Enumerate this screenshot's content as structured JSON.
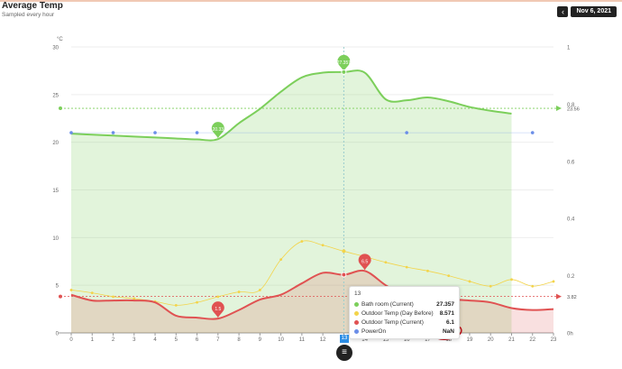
{
  "header": {
    "title": "Average Temp",
    "subtitle": "Sampled every hour"
  },
  "datebar": {
    "prev": "‹",
    "date": "Nov 6, 2021",
    "next": "›"
  },
  "menu_icon": "≡",
  "tooltip": {
    "header": "13",
    "rows": [
      {
        "name": "Bath room (Current)",
        "value": "27.357",
        "color": "#7ccf5b"
      },
      {
        "name": "Outdoor Temp (Day Before)",
        "value": "8.571",
        "color": "#f3d44a"
      },
      {
        "name": "Outdoor Temp (Current)",
        "value": "6.1",
        "color": "#e05252"
      },
      {
        "name": "PowerOn",
        "value": "NaN",
        "color": "#6b8ee8"
      }
    ]
  },
  "chart_data": {
    "type": "area",
    "x": [
      0,
      1,
      2,
      3,
      4,
      5,
      6,
      7,
      8,
      9,
      10,
      11,
      12,
      13,
      14,
      15,
      16,
      17,
      18,
      19,
      20,
      21,
      22,
      23
    ],
    "xlim": [
      0,
      23
    ],
    "y_left": {
      "unit": "°C",
      "ylim": [
        0,
        30
      ],
      "ticks": [
        0,
        5,
        10,
        15,
        20,
        25,
        30
      ]
    },
    "y_right": {
      "ylim": [
        0,
        1
      ],
      "ticks": [
        "0h",
        "0.2",
        "0.4",
        "0.6",
        "0.8",
        "1"
      ]
    },
    "crosshair_x": 13,
    "colors": {
      "bath": "#7ccf5b",
      "before": "#f3d44a",
      "outdoor": "#e05252",
      "power": "#6b8ee8",
      "cross": "#2d8ee6"
    },
    "series": [
      {
        "name": "Bath room (Current)",
        "axis": "left",
        "values": [
          20.9,
          20.8,
          20.7,
          20.6,
          20.5,
          20.4,
          20.3,
          20.33,
          22.0,
          23.5,
          25.3,
          26.8,
          27.3,
          27.357,
          27.3,
          24.5,
          24.4,
          24.7,
          24.3,
          23.7,
          23.3,
          23.0,
          null,
          null
        ],
        "average": 23.56,
        "max_label": "27.357",
        "min_label": "20.33"
      },
      {
        "name": "Outdoor Temp (Day Before)",
        "axis": "left",
        "values": [
          4.5,
          4.2,
          3.8,
          3.6,
          3.3,
          2.9,
          3.2,
          3.8,
          4.3,
          4.5,
          7.7,
          9.6,
          9.2,
          8.571,
          8.0,
          7.4,
          6.9,
          6.5,
          6.0,
          5.4,
          4.9,
          5.6,
          4.9,
          5.4
        ]
      },
      {
        "name": "Outdoor Temp (Current)",
        "axis": "left",
        "values": [
          4.0,
          3.4,
          3.4,
          3.4,
          3.2,
          1.8,
          1.6,
          1.5,
          2.4,
          3.5,
          4.0,
          5.2,
          6.3,
          6.1,
          6.5,
          5.0,
          3.8,
          3.6,
          3.5,
          3.4,
          3.2,
          2.6,
          2.4,
          2.5
        ],
        "average": 3.82,
        "max_label": "6.5",
        "min_label": "1.5"
      },
      {
        "name": "PowerOn",
        "axis": "right",
        "x": [
          0,
          2,
          4,
          6,
          16,
          22
        ],
        "values": [
          0.7,
          0.7,
          0.7,
          0.7,
          0.7,
          0.7
        ]
      }
    ],
    "right_markers": [
      {
        "value": 23.56,
        "label": "23.56"
      },
      {
        "value": 3.82,
        "label": "3.82"
      }
    ]
  }
}
